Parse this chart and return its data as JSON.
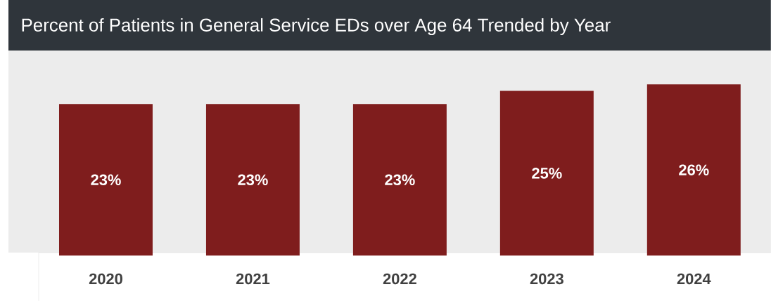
{
  "chart_data": {
    "type": "bar",
    "title": "Percent of Patients in General Service EDs over Age 64 Trended by Year",
    "categories": [
      "2020",
      "2021",
      "2022",
      "2023",
      "2024"
    ],
    "values": [
      23,
      23,
      23,
      25,
      26
    ],
    "value_labels": [
      "23%",
      "23%",
      "23%",
      "25%",
      "26%"
    ],
    "color": "#7f1d1d"
  }
}
